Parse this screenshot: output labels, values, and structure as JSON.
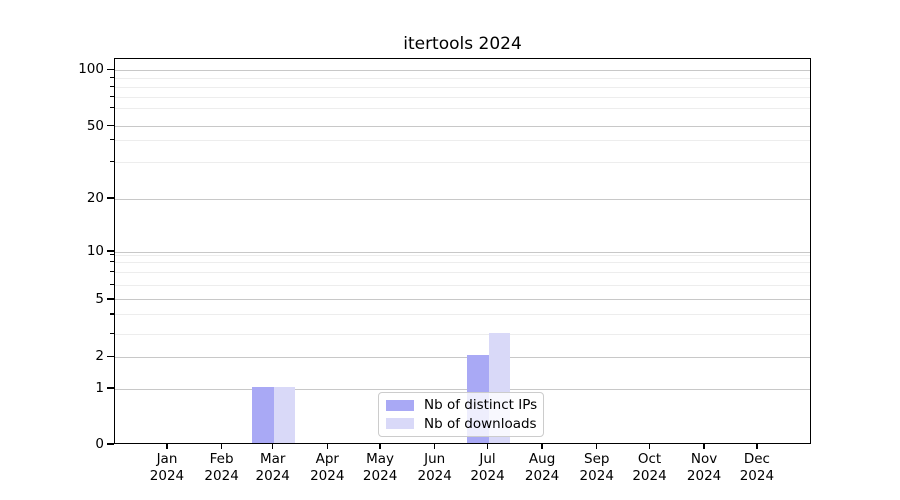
{
  "chart_data": {
    "type": "bar",
    "title": "itertools 2024",
    "categories": [
      "Jan 2024",
      "Feb 2024",
      "Mar 2024",
      "Apr 2024",
      "May 2024",
      "Jun 2024",
      "Jul 2024",
      "Aug 2024",
      "Sep 2024",
      "Oct 2024",
      "Nov 2024",
      "Dec 2024"
    ],
    "x_tick_months": [
      "Jan",
      "Feb",
      "Mar",
      "Apr",
      "May",
      "Jun",
      "Jul",
      "Aug",
      "Sep",
      "Oct",
      "Nov",
      "Dec"
    ],
    "x_tick_year": "2024",
    "series": [
      {
        "name": "Nb of distinct IPs",
        "color": "#a9a9f5",
        "values": [
          0,
          0,
          1,
          0,
          0,
          0,
          2,
          0,
          0,
          0,
          0,
          0
        ]
      },
      {
        "name": "Nb of downloads",
        "color": "#d9d9f8",
        "values": [
          0,
          0,
          1,
          0,
          0,
          0,
          3,
          0,
          0,
          0,
          0,
          0
        ]
      }
    ],
    "y_axis": {
      "scale": "asinh-log",
      "major_ticks": [
        0,
        1,
        2,
        5,
        10,
        20,
        50,
        100
      ],
      "minor_ticks": [
        3,
        4,
        6,
        7,
        8,
        9,
        30,
        40,
        60,
        70,
        80,
        90
      ],
      "ylim": [
        0,
        116
      ]
    },
    "x_axis": {
      "unit": "month",
      "range": [
        "Dec 2023",
        "Jan 2025"
      ]
    },
    "grid": true,
    "legend": {
      "position": "lower center",
      "entries": [
        "Nb of distinct IPs",
        "Nb of downloads"
      ]
    },
    "colors": {
      "grid_major": "#c8c8c8",
      "grid_minor": "#ededed",
      "axis": "#000000",
      "legend_border": "#cccccc"
    }
  }
}
